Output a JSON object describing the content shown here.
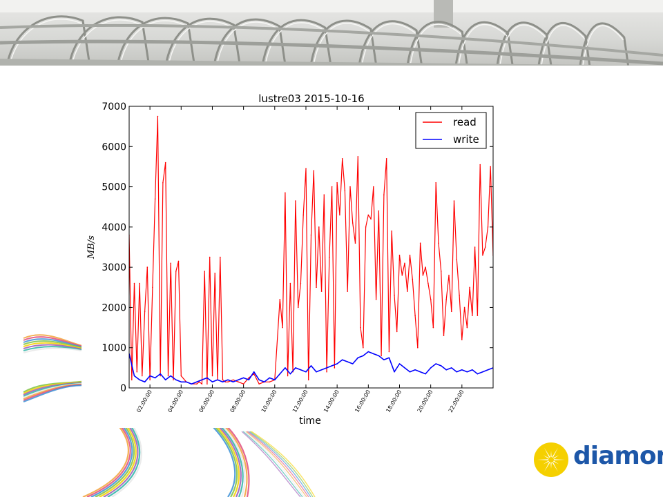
{
  "slide": {
    "logo": {
      "text": "diamond",
      "icon": "diamond-sunburst-logo"
    },
    "colors": {
      "logo_blue": "#1d57a8",
      "logo_yellow": "#f5d000"
    }
  },
  "chart_data": {
    "type": "line",
    "title": "lustre03   2015-10-16",
    "xlabel": "time",
    "ylabel": "MB/s",
    "xlim": [
      "00:40",
      "24:00"
    ],
    "ylim": [
      0,
      7000
    ],
    "yticks": [
      0,
      1000,
      2000,
      3000,
      4000,
      5000,
      6000,
      7000
    ],
    "xticks": [
      "02:00:00",
      "04:00:00",
      "06:00:00",
      "08:00:00",
      "10:00:00",
      "12:00:00",
      "14:00:00",
      "16:00:00",
      "18:00:00",
      "20:00:00",
      "22:00:00"
    ],
    "legend": {
      "position": "top-right"
    },
    "grid": false,
    "series": [
      {
        "name": "read",
        "color": "#ff0000",
        "x": [
          "00:40",
          "00:50",
          "01:00",
          "01:10",
          "01:20",
          "01:30",
          "01:40",
          "01:50",
          "02:00",
          "02:10",
          "02:20",
          "02:30",
          "02:40",
          "02:50",
          "03:00",
          "03:10",
          "03:20",
          "03:30",
          "03:40",
          "03:50",
          "04:00",
          "04:20",
          "04:40",
          "05:00",
          "05:10",
          "05:20",
          "05:30",
          "05:40",
          "05:50",
          "06:00",
          "06:10",
          "06:20",
          "06:30",
          "06:40",
          "06:50",
          "07:00",
          "07:20",
          "07:40",
          "08:00",
          "08:20",
          "08:40",
          "09:00",
          "09:20",
          "09:40",
          "10:00",
          "10:20",
          "10:30",
          "10:40",
          "10:50",
          "11:00",
          "11:10",
          "11:20",
          "11:30",
          "11:40",
          "11:50",
          "12:00",
          "12:10",
          "12:20",
          "12:30",
          "12:40",
          "12:50",
          "13:00",
          "13:10",
          "13:20",
          "13:30",
          "13:40",
          "13:50",
          "14:00",
          "14:10",
          "14:20",
          "14:30",
          "14:40",
          "14:50",
          "15:00",
          "15:10",
          "15:20",
          "15:30",
          "15:40",
          "15:50",
          "16:00",
          "16:10",
          "16:20",
          "16:30",
          "16:40",
          "16:50",
          "17:00",
          "17:10",
          "17:20",
          "17:30",
          "17:40",
          "17:50",
          "18:00",
          "18:10",
          "18:20",
          "18:30",
          "18:40",
          "18:50",
          "19:00",
          "19:10",
          "19:20",
          "19:30",
          "19:40",
          "19:50",
          "20:00",
          "20:10",
          "20:20",
          "20:30",
          "20:40",
          "20:50",
          "21:00",
          "21:10",
          "21:20",
          "21:30",
          "21:40",
          "21:50",
          "22:00",
          "22:10",
          "22:20",
          "22:30",
          "22:40",
          "22:50",
          "23:00",
          "23:10",
          "23:20",
          "23:30",
          "23:40",
          "23:50",
          "24:00"
        ],
        "values": [
          3800,
          200,
          2600,
          400,
          2600,
          300,
          1900,
          3000,
          200,
          2500,
          4700,
          6750,
          300,
          5100,
          5600,
          300,
          3100,
          200,
          2900,
          3150,
          300,
          150,
          100,
          100,
          150,
          100,
          2900,
          100,
          3250,
          300,
          2850,
          200,
          3250,
          200,
          150,
          150,
          200,
          150,
          100,
          250,
          350,
          100,
          150,
          150,
          200,
          2200,
          1500,
          4850,
          300,
          2600,
          400,
          4650,
          2000,
          2600,
          4300,
          5450,
          200,
          3800,
          5400,
          2500,
          4000,
          2400,
          4800,
          400,
          3250,
          5000,
          500,
          5100,
          4300,
          5700,
          4900,
          2400,
          5000,
          4100,
          3600,
          5750,
          1500,
          1000,
          4000,
          4300,
          4200,
          5000,
          2200,
          4400,
          800,
          4800,
          5700,
          900,
          3900,
          2300,
          1400,
          3300,
          2800,
          3100,
          2400,
          3300,
          2700,
          1800,
          1000,
          3600,
          2800,
          3000,
          2600,
          2200,
          1500,
          5100,
          3600,
          2900,
          1300,
          2200,
          2800,
          1900,
          4650,
          3200,
          2300,
          1200,
          2000,
          1500,
          2500,
          1800,
          3500,
          1800,
          5550,
          3300,
          3500,
          4000,
          5500,
          3300
        ]
      },
      {
        "name": "write",
        "color": "#0000ff",
        "x": [
          "00:40",
          "01:00",
          "01:20",
          "01:40",
          "02:00",
          "02:20",
          "02:40",
          "03:00",
          "03:20",
          "03:40",
          "04:00",
          "04:20",
          "04:40",
          "05:00",
          "05:20",
          "05:40",
          "06:00",
          "06:20",
          "06:40",
          "07:00",
          "07:20",
          "07:40",
          "08:00",
          "08:20",
          "08:40",
          "09:00",
          "09:20",
          "09:40",
          "10:00",
          "10:20",
          "10:40",
          "11:00",
          "11:20",
          "11:40",
          "12:00",
          "12:20",
          "12:40",
          "13:00",
          "13:20",
          "13:40",
          "14:00",
          "14:20",
          "14:40",
          "15:00",
          "15:20",
          "15:40",
          "16:00",
          "16:20",
          "16:40",
          "17:00",
          "17:20",
          "17:40",
          "18:00",
          "18:20",
          "18:40",
          "19:00",
          "19:20",
          "19:40",
          "20:00",
          "20:20",
          "20:40",
          "21:00",
          "21:20",
          "21:40",
          "22:00",
          "22:20",
          "22:40",
          "23:00",
          "23:20",
          "23:40",
          "24:00"
        ],
        "values": [
          850,
          300,
          200,
          150,
          300,
          250,
          350,
          200,
          300,
          200,
          150,
          150,
          100,
          150,
          200,
          250,
          150,
          200,
          150,
          200,
          150,
          200,
          250,
          200,
          400,
          200,
          150,
          250,
          200,
          350,
          500,
          350,
          500,
          450,
          400,
          550,
          400,
          450,
          500,
          550,
          600,
          700,
          650,
          600,
          750,
          800,
          900,
          850,
          800,
          700,
          750,
          400,
          600,
          500,
          400,
          450,
          400,
          350,
          500,
          600,
          550,
          450,
          500,
          400,
          450,
          400,
          450,
          350,
          400,
          450,
          500
        ]
      }
    ]
  }
}
